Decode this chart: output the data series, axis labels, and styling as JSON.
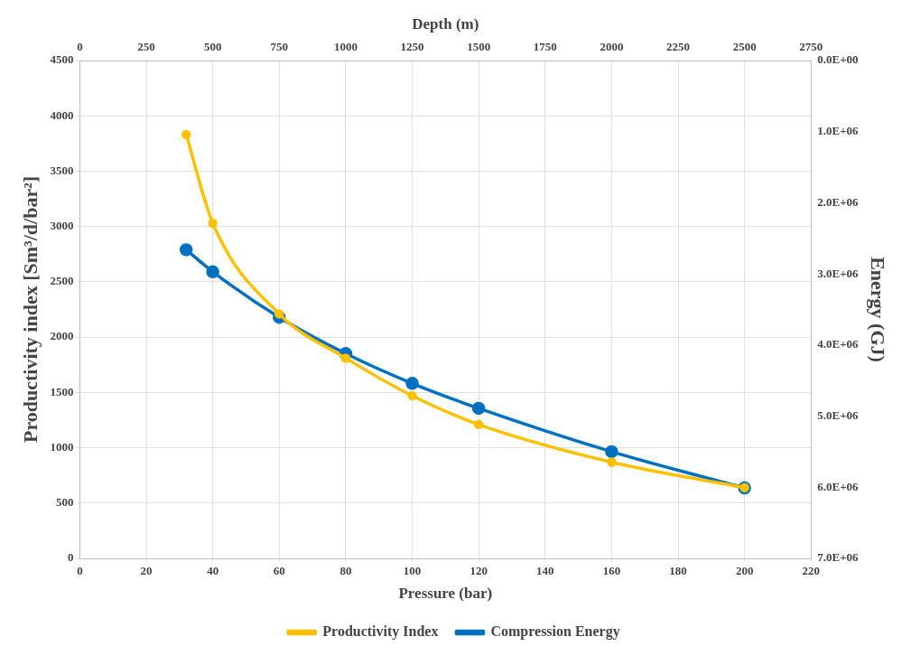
{
  "chart_data": {
    "type": "line",
    "xlabel": "Pressure (bar)",
    "ylabel": "Productivity index [Sm³/d/bar²]",
    "y2label": "Energy (GJ)",
    "x2label": "Depth (m)",
    "x": [
      32,
      40,
      60,
      80,
      100,
      120,
      160,
      200
    ],
    "series": [
      {
        "name": "Productivity Index",
        "color": "#ffc000",
        "values": [
          3830,
          3030,
          2210,
          1810,
          1470,
          1210,
          870,
          640
        ]
      },
      {
        "name": "Compression Energy",
        "color": "#0070c0",
        "axis": "y2",
        "values": [
          2660000,
          2970000,
          3610000,
          4120000,
          4540000,
          4890000,
          5500000,
          6010000
        ]
      }
    ],
    "xlim": [
      0,
      220
    ],
    "xticks": [
      0,
      20,
      40,
      60,
      80,
      100,
      120,
      140,
      160,
      180,
      200,
      220
    ],
    "x2lim": [
      0,
      2750
    ],
    "x2ticks": [
      0,
      250,
      500,
      750,
      1000,
      1250,
      1500,
      1750,
      2000,
      2250,
      2500,
      2750
    ],
    "ylim": [
      0,
      4500
    ],
    "yticks": [
      0,
      500,
      1000,
      1500,
      2000,
      2500,
      3000,
      3500,
      4000,
      4500
    ],
    "y2lim": [
      7000000,
      0
    ],
    "y2ticks": [
      {
        "value": 0,
        "label": "0.0E+00"
      },
      {
        "value": 1000000,
        "label": "1.0E+06"
      },
      {
        "value": 2000000,
        "label": "2.0E+06"
      },
      {
        "value": 3000000,
        "label": "3.0E+06"
      },
      {
        "value": 4000000,
        "label": "4.0E+06"
      },
      {
        "value": 5000000,
        "label": "5.0E+06"
      },
      {
        "value": 6000000,
        "label": "6.0E+06"
      },
      {
        "value": 7000000,
        "label": "7.0E+06"
      }
    ],
    "grid": true,
    "legend": "bottom",
    "marker": "circle",
    "line_style": "solid"
  }
}
